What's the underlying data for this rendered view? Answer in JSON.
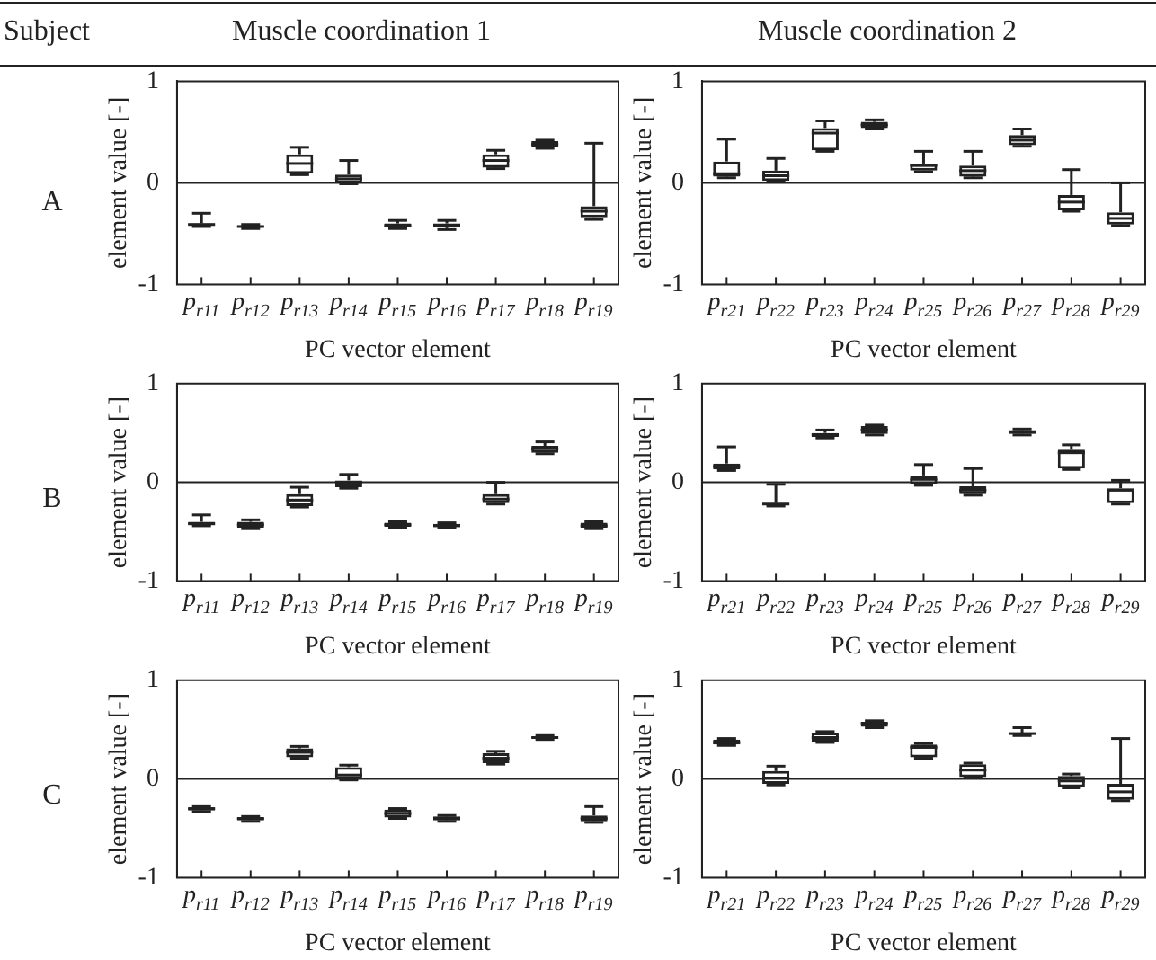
{
  "chart_data": [
    {
      "type": "other",
      "annotations": [
        "Subject",
        "A",
        "B",
        "C"
      ]
    },
    {
      "type": "box",
      "title": "Muscle coordination 1",
      "xlabel": "PC vector element",
      "ylabel": "element value [-]",
      "categories": [
        "p$_{r11}$",
        "p$_{r12}$",
        "p$_{r13}$",
        "p$_{r14}$",
        "p$_{r15}$",
        "p$_{r16}$",
        "p$_{r17}$",
        "p$_{r18}$",
        "p$_{r19}$"
      ],
      "ylim": [
        -1,
        1
      ],
      "yticks": [
        -1,
        0,
        1
      ],
      "legend": false,
      "ref_lines": [
        {
          "axis": "y",
          "value": 0
        }
      ],
      "series": [
        {
          "color": "#222222",
          "boxes": [
            {
              "low": -0.43,
              "q1": -0.42,
              "median": -0.41,
              "q3": -0.4,
              "high": -0.3
            },
            {
              "low": -0.45,
              "q1": -0.44,
              "median": -0.43,
              "q3": -0.42,
              "high": -0.41
            },
            {
              "low": 0.08,
              "q1": 0.09,
              "median": 0.19,
              "q3": 0.28,
              "high": 0.35
            },
            {
              "low": -0.01,
              "q1": 0.0,
              "median": 0.04,
              "q3": 0.08,
              "high": 0.22
            },
            {
              "low": -0.45,
              "q1": -0.44,
              "median": -0.42,
              "q3": -0.4,
              "high": -0.37
            },
            {
              "low": -0.46,
              "q1": -0.44,
              "median": -0.42,
              "q3": -0.4,
              "high": -0.37
            },
            {
              "low": 0.14,
              "q1": 0.15,
              "median": 0.22,
              "q3": 0.28,
              "high": 0.32
            },
            {
              "low": 0.34,
              "q1": 0.35,
              "median": 0.38,
              "q3": 0.41,
              "high": 0.42
            },
            {
              "low": -0.36,
              "q1": -0.34,
              "median": -0.28,
              "q3": -0.23,
              "high": 0.39
            }
          ]
        }
      ]
    },
    {
      "type": "box",
      "title": "Muscle coordination 2",
      "xlabel": "PC vector element",
      "ylabel": "element value [-]",
      "categories": [
        "p$_{r21}$",
        "p$_{r22}$",
        "p$_{r23}$",
        "p$_{r24}$",
        "p$_{r25}$",
        "p$_{r26}$",
        "p$_{r27}$",
        "p$_{r28}$",
        "p$_{r29}$"
      ],
      "ylim": [
        -1,
        1
      ],
      "yticks": [
        -1,
        0,
        1
      ],
      "legend": false,
      "ref_lines": [
        {
          "axis": "y",
          "value": 0
        }
      ],
      "series": [
        {
          "color": "#222222",
          "boxes": [
            {
              "low": 0.05,
              "q1": 0.06,
              "median": 0.09,
              "q3": 0.21,
              "high": 0.43
            },
            {
              "low": 0.01,
              "q1": 0.02,
              "median": 0.07,
              "q3": 0.12,
              "high": 0.24
            },
            {
              "low": 0.31,
              "q1": 0.32,
              "median": 0.49,
              "q3": 0.54,
              "high": 0.61
            },
            {
              "low": 0.53,
              "q1": 0.54,
              "median": 0.57,
              "q3": 0.6,
              "high": 0.62
            },
            {
              "low": 0.11,
              "q1": 0.12,
              "median": 0.17,
              "q3": 0.19,
              "high": 0.31
            },
            {
              "low": 0.05,
              "q1": 0.06,
              "median": 0.12,
              "q3": 0.17,
              "high": 0.31
            },
            {
              "low": 0.36,
              "q1": 0.37,
              "median": 0.42,
              "q3": 0.47,
              "high": 0.53
            },
            {
              "low": -0.28,
              "q1": -0.27,
              "median": -0.19,
              "q3": -0.12,
              "high": 0.13
            },
            {
              "low": -0.42,
              "q1": -0.41,
              "median": -0.35,
              "q3": -0.29,
              "high": 0.0
            }
          ]
        }
      ]
    },
    {
      "type": "box",
      "xlabel": "PC vector element",
      "ylabel": "element value [-]",
      "categories": [
        "p$_{r11}$",
        "p$_{r12}$",
        "p$_{r13}$",
        "p$_{r14}$",
        "p$_{r15}$",
        "p$_{r16}$",
        "p$_{r17}$",
        "p$_{r18}$",
        "p$_{r19}$"
      ],
      "ylim": [
        -1,
        1
      ],
      "yticks": [
        -1,
        0,
        1
      ],
      "legend": false,
      "ref_lines": [
        {
          "axis": "y",
          "value": 0
        }
      ],
      "series": [
        {
          "color": "#222222",
          "boxes": [
            {
              "low": -0.44,
              "q1": -0.43,
              "median": -0.42,
              "q3": -0.4,
              "high": -0.33
            },
            {
              "low": -0.47,
              "q1": -0.46,
              "median": -0.43,
              "q3": -0.4,
              "high": -0.38
            },
            {
              "low": -0.25,
              "q1": -0.24,
              "median": -0.18,
              "q3": -0.12,
              "high": -0.05
            },
            {
              "low": -0.06,
              "q1": -0.05,
              "median": 0.0,
              "q3": 0.02,
              "high": 0.08
            },
            {
              "low": -0.46,
              "q1": -0.45,
              "median": -0.43,
              "q3": -0.41,
              "high": -0.4
            },
            {
              "low": -0.46,
              "q1": -0.45,
              "median": -0.44,
              "q3": -0.42,
              "high": -0.41
            },
            {
              "low": -0.22,
              "q1": -0.21,
              "median": -0.17,
              "q3": -0.12,
              "high": 0.0
            },
            {
              "low": 0.29,
              "q1": 0.3,
              "median": 0.34,
              "q3": 0.37,
              "high": 0.41
            },
            {
              "low": -0.47,
              "q1": -0.46,
              "median": -0.44,
              "q3": -0.41,
              "high": -0.4
            }
          ]
        }
      ]
    },
    {
      "type": "box",
      "xlabel": "PC vector element",
      "ylabel": "element value [-]",
      "categories": [
        "p$_{r21}$",
        "p$_{r22}$",
        "p$_{r23}$",
        "p$_{r24}$",
        "p$_{r25}$",
        "p$_{r26}$",
        "p$_{r27}$",
        "p$_{r28}$",
        "p$_{r29}$"
      ],
      "ylim": [
        -1,
        1
      ],
      "yticks": [
        -1,
        0,
        1
      ],
      "legend": false,
      "ref_lines": [
        {
          "axis": "y",
          "value": 0
        }
      ],
      "series": [
        {
          "color": "#222222",
          "boxes": [
            {
              "low": 0.12,
              "q1": 0.13,
              "median": 0.16,
              "q3": 0.19,
              "high": 0.36
            },
            {
              "low": -0.24,
              "q1": -0.23,
              "median": -0.22,
              "q3": -0.21,
              "high": -0.02
            },
            {
              "low": 0.45,
              "q1": 0.46,
              "median": 0.48,
              "q3": 0.5,
              "high": 0.53
            },
            {
              "low": 0.48,
              "q1": 0.49,
              "median": 0.53,
              "q3": 0.57,
              "high": 0.58
            },
            {
              "low": -0.03,
              "q1": -0.02,
              "median": 0.03,
              "q3": 0.07,
              "high": 0.18
            },
            {
              "low": -0.13,
              "q1": -0.12,
              "median": -0.08,
              "q3": -0.04,
              "high": 0.14
            },
            {
              "low": 0.48,
              "q1": 0.49,
              "median": 0.51,
              "q3": 0.53,
              "high": 0.54
            },
            {
              "low": 0.13,
              "q1": 0.14,
              "median": 0.3,
              "q3": 0.33,
              "high": 0.38
            },
            {
              "low": -0.22,
              "q1": -0.21,
              "median": -0.08,
              "q3": -0.06,
              "high": 0.02
            }
          ]
        }
      ]
    },
    {
      "type": "box",
      "xlabel": "PC vector element",
      "ylabel": "element value [-]",
      "categories": [
        "p$_{r11}$",
        "p$_{r12}$",
        "p$_{r13}$",
        "p$_{r14}$",
        "p$_{r15}$",
        "p$_{r16}$",
        "p$_{r17}$",
        "p$_{r18}$",
        "p$_{r19}$"
      ],
      "ylim": [
        -1,
        1
      ],
      "yticks": [
        -1,
        0,
        1
      ],
      "legend": false,
      "ref_lines": [
        {
          "axis": "y",
          "value": 0
        }
      ],
      "series": [
        {
          "color": "#222222",
          "boxes": [
            {
              "low": -0.33,
              "q1": -0.32,
              "median": -0.3,
              "q3": -0.29,
              "high": -0.28
            },
            {
              "low": -0.43,
              "q1": -0.42,
              "median": -0.4,
              "q3": -0.39,
              "high": -0.38
            },
            {
              "low": 0.21,
              "q1": 0.22,
              "median": 0.27,
              "q3": 0.31,
              "high": 0.33
            },
            {
              "low": -0.01,
              "q1": 0.0,
              "median": 0.04,
              "q3": 0.12,
              "high": 0.14
            },
            {
              "low": -0.4,
              "q1": -0.39,
              "median": -0.35,
              "q3": -0.31,
              "high": -0.3
            },
            {
              "low": -0.43,
              "q1": -0.42,
              "median": -0.4,
              "q3": -0.38,
              "high": -0.37
            },
            {
              "low": 0.15,
              "q1": 0.16,
              "median": 0.21,
              "q3": 0.26,
              "high": 0.28
            },
            {
              "low": 0.4,
              "q1": 0.41,
              "median": 0.42,
              "q3": 0.43,
              "high": 0.44
            },
            {
              "low": -0.44,
              "q1": -0.43,
              "median": -0.4,
              "q3": -0.37,
              "high": -0.28
            }
          ]
        }
      ]
    },
    {
      "type": "box",
      "xlabel": "PC vector element",
      "ylabel": "element value [-]",
      "categories": [
        "p$_{r21}$",
        "p$_{r22}$",
        "p$_{r23}$",
        "p$_{r24}$",
        "p$_{r25}$",
        "p$_{r26}$",
        "p$_{r27}$",
        "p$_{r28}$",
        "p$_{r29}$"
      ],
      "ylim": [
        -1,
        1
      ],
      "yticks": [
        -1,
        0,
        1
      ],
      "legend": false,
      "ref_lines": [
        {
          "axis": "y",
          "value": 0
        }
      ],
      "series": [
        {
          "color": "#222222",
          "boxes": [
            {
              "low": 0.34,
              "q1": 0.35,
              "median": 0.37,
              "q3": 0.4,
              "high": 0.41
            },
            {
              "low": -0.06,
              "q1": -0.05,
              "median": 0.01,
              "q3": 0.08,
              "high": 0.13
            },
            {
              "low": 0.37,
              "q1": 0.38,
              "median": 0.42,
              "q3": 0.47,
              "high": 0.48
            },
            {
              "low": 0.52,
              "q1": 0.53,
              "median": 0.56,
              "q3": 0.58,
              "high": 0.59
            },
            {
              "low": 0.21,
              "q1": 0.22,
              "median": 0.32,
              "q3": 0.35,
              "high": 0.36
            },
            {
              "low": 0.01,
              "q1": 0.02,
              "median": 0.09,
              "q3": 0.15,
              "high": 0.16
            },
            {
              "low": 0.44,
              "q1": 0.45,
              "median": 0.46,
              "q3": 0.47,
              "high": 0.52
            },
            {
              "low": -0.09,
              "q1": -0.08,
              "median": -0.02,
              "q3": 0.03,
              "high": 0.05
            },
            {
              "low": -0.22,
              "q1": -0.21,
              "median": -0.13,
              "q3": -0.05,
              "high": 0.41
            }
          ]
        }
      ]
    }
  ]
}
